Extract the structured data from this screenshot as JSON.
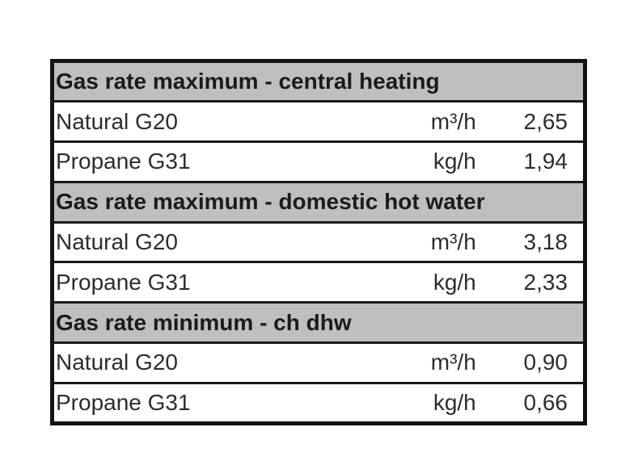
{
  "table": {
    "colors": {
      "page_bg": "#ffffff",
      "header_bg": "#bfbfbf",
      "border": "#141414",
      "header_text": "#1b1b1e",
      "data_text": "#2d2d30"
    },
    "sections": [
      {
        "header": "Gas rate maximum - central heating",
        "rows": [
          {
            "label": "Natural G20",
            "unit": "m³/h",
            "value": "2,65"
          },
          {
            "label": "Propane G31",
            "unit": "kg/h",
            "value": "1,94"
          }
        ]
      },
      {
        "header": "Gas rate maximum - domestic hot water",
        "rows": [
          {
            "label": "Natural G20",
            "unit": "m³/h",
            "value": "3,18"
          },
          {
            "label": "Propane G31",
            "unit": "kg/h",
            "value": "2,33"
          }
        ]
      },
      {
        "header": "Gas rate minimum - ch dhw",
        "rows": [
          {
            "label": "Natural G20",
            "unit": "m³/h",
            "value": "0,90"
          },
          {
            "label": "Propane G31",
            "unit": "kg/h",
            "value": "0,66"
          }
        ]
      }
    ]
  }
}
